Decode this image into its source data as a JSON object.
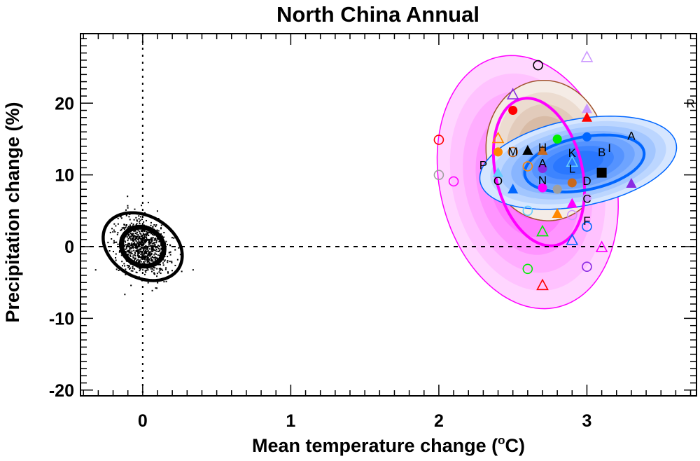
{
  "chart_data": {
    "type": "scatter",
    "title": "North China Annual",
    "xlabel": "Mean temperature change (",
    "xlabel_sup": "o",
    "xlabel_end": "C)",
    "ylabel": "Precipitation change (%)",
    "xlim": [
      -0.42,
      3.74
    ],
    "ylim": [
      -20.8,
      29.7
    ],
    "xticks": [
      0,
      1,
      2,
      3
    ],
    "xtick_labels": [
      "0",
      "1",
      "2",
      "3"
    ],
    "yticks": [
      -20,
      -10,
      0,
      10,
      20
    ],
    "ytick_labels": [
      "-20",
      "-10",
      "0",
      "10",
      "20"
    ],
    "grid": false,
    "reference_lines": {
      "x": 0,
      "y": 0,
      "style": "dotted"
    },
    "control_scatter": {
      "n": 850,
      "center": [
        0,
        0
      ],
      "x_sd": 0.1,
      "y_sd": 2.0,
      "color": "#000000"
    },
    "ellipses": [
      {
        "name": "magenta-pdf",
        "center": [
          2.6,
          9.0
        ],
        "axis1": [
          0.208,
          -17.4
        ],
        "axis2": [
          -0.575,
          -2.93
        ],
        "edge": "#ff00ff",
        "fills": [
          "#ffd6ff",
          "#ffc2ff",
          "#ffadff",
          "#ff94ff",
          "#ff7cff",
          "#ff66ff"
        ]
      },
      {
        "name": "brown-pdf",
        "center": [
          2.723,
          13.4
        ],
        "axis1": [
          -0.047,
          9.76
        ],
        "axis2": [
          0.402,
          0.78
        ],
        "edge": "#a0522d",
        "fills": [
          "#f5ece6",
          "#ecdcd0",
          "#e2cbbb",
          "#d8bba6",
          "#cfac95"
        ]
      },
      {
        "name": "blue-pdf",
        "center": [
          2.941,
          11.7
        ],
        "axis1": [
          0.662,
          2.63
        ],
        "axis2": [
          0.055,
          -5.94
        ],
        "edge": "#0066ff",
        "fills": [
          "#d6e6ff",
          "#bcd6ff",
          "#a2c6ff",
          "#88b5ff",
          "#6ea4ff",
          "#5593ff",
          "#3d84ff",
          "#2a77ff"
        ]
      }
    ],
    "contours": [
      {
        "name": "control-outer-contour",
        "center": [
          0,
          0
        ],
        "axis1": [
          0.246,
          -2.93
        ],
        "axis2": [
          -0.104,
          -3.71
        ],
        "color": "#000000"
      },
      {
        "name": "control-inner-contour",
        "center": [
          0,
          0
        ],
        "axis1": [
          0.132,
          -1.37
        ],
        "axis2": [
          -0.057,
          -2.34
        ],
        "color": "#000000"
      },
      {
        "name": "magenta-inner-contour",
        "center": [
          2.676,
          10.4
        ],
        "axis1": [
          0.118,
          -10.2
        ],
        "axis2": [
          -0.284,
          -1.37
        ],
        "color": "#ff00ff"
      },
      {
        "name": "blue-inner-contour",
        "center": [
          2.983,
          11.6
        ],
        "axis1": [
          0.402,
          1.66
        ],
        "axis2": [
          0.035,
          -3.61
        ],
        "color": "#0066ff"
      }
    ],
    "markers": [
      {
        "shape": "circle-open",
        "color": "#000000",
        "x": 2.67,
        "y": 25.3
      },
      {
        "shape": "circle-open",
        "color": "#ff0000",
        "x": 2.0,
        "y": 14.9
      },
      {
        "shape": "circle-open",
        "color": "#a0a0a0",
        "x": 2.0,
        "y": 10.0
      },
      {
        "shape": "circle-open",
        "color": "#ff00ff",
        "x": 2.1,
        "y": 9.1
      },
      {
        "shape": "circle-open",
        "color": "#ff8800",
        "x": 2.6,
        "y": 11.2
      },
      {
        "shape": "circle-open",
        "color": "#66ccff",
        "x": 2.6,
        "y": 5.0
      },
      {
        "shape": "circle-open",
        "color": "#cc99ff",
        "x": 2.9,
        "y": 4.4
      },
      {
        "shape": "circle-open",
        "color": "#0066ff",
        "x": 3.0,
        "y": 2.8
      },
      {
        "shape": "circle-open",
        "color": "#00ee00",
        "x": 2.6,
        "y": -3.1
      },
      {
        "shape": "circle-open",
        "color": "#8a2be2",
        "x": 3.0,
        "y": -2.8
      },
      {
        "shape": "circle-open",
        "color": "#c8691e",
        "x": 2.5,
        "y": 13.2
      },
      {
        "shape": "triangle-open",
        "color": "#cc99ff",
        "x": 3.0,
        "y": 26.4
      },
      {
        "shape": "triangle-open",
        "color": "#8a2be2",
        "x": 2.5,
        "y": 21.2
      },
      {
        "shape": "triangle-open",
        "color": "#ff8800",
        "x": 2.4,
        "y": 15.1
      },
      {
        "shape": "triangle-open",
        "color": "#00ee00",
        "x": 2.7,
        "y": 2.1
      },
      {
        "shape": "triangle-open",
        "color": "#0066ff",
        "x": 2.9,
        "y": 0.9
      },
      {
        "shape": "triangle-open",
        "color": "#ff00ff",
        "x": 3.1,
        "y": -0.1
      },
      {
        "shape": "triangle-open",
        "color": "#ff0000",
        "x": 2.7,
        "y": -5.4
      },
      {
        "shape": "triangle-open",
        "color": "#66ccff",
        "x": 2.9,
        "y": 11.8
      },
      {
        "shape": "circle",
        "color": "#ff0000",
        "x": 2.5,
        "y": 19.0
      },
      {
        "shape": "circle",
        "color": "#00ee00",
        "x": 2.8,
        "y": 15.0
      },
      {
        "shape": "circle",
        "color": "#0066ff",
        "x": 3.0,
        "y": 15.3
      },
      {
        "shape": "circle",
        "color": "#ff8800",
        "x": 2.4,
        "y": 13.2
      },
      {
        "shape": "circle",
        "color": "#8a2be2",
        "x": 2.7,
        "y": 10.9
      },
      {
        "shape": "circle",
        "color": "#ff00ff",
        "x": 2.7,
        "y": 8.2
      },
      {
        "shape": "circle",
        "color": "#a0a0a0",
        "x": 2.8,
        "y": 8.0
      },
      {
        "shape": "circle",
        "color": "#c8691e",
        "x": 2.9,
        "y": 8.9
      },
      {
        "shape": "circle",
        "color": "#cc99ff",
        "x": 3.0,
        "y": 6.8
      },
      {
        "shape": "triangle",
        "color": "#66ccff",
        "x": 2.4,
        "y": 10.3
      },
      {
        "shape": "triangle",
        "color": "#cc99ff",
        "x": 3.0,
        "y": 19.2
      },
      {
        "shape": "triangle",
        "color": "#ff0000",
        "x": 3.0,
        "y": 18.0
      },
      {
        "shape": "triangle",
        "color": "#000000",
        "x": 2.6,
        "y": 13.4
      },
      {
        "shape": "triangle",
        "color": "#c8691e",
        "x": 2.7,
        "y": 13.4
      },
      {
        "shape": "triangle",
        "color": "#0066ff",
        "x": 2.5,
        "y": 8.0
      },
      {
        "shape": "triangle",
        "color": "#8a2be2",
        "x": 3.3,
        "y": 8.8
      },
      {
        "shape": "triangle",
        "color": "#ff00ff",
        "x": 2.9,
        "y": 6.0
      },
      {
        "shape": "triangle",
        "color": "#ff8800",
        "x": 2.8,
        "y": 4.6
      },
      {
        "shape": "square",
        "color": "#000000",
        "x": 3.1,
        "y": 10.3
      }
    ],
    "letter_labels": [
      {
        "text": "A",
        "x": 3.3,
        "y": 15.5
      },
      {
        "text": "M",
        "x": 2.5,
        "y": 13.3
      },
      {
        "text": "H",
        "x": 2.7,
        "y": 13.9
      },
      {
        "text": "K",
        "x": 2.9,
        "y": 13.1
      },
      {
        "text": "B",
        "x": 3.1,
        "y": 13.2
      },
      {
        "text": "I",
        "x": 3.1,
        "y": 13.8
      },
      {
        "text": "A",
        "x": 2.7,
        "y": 11.7
      },
      {
        "text": "L",
        "x": 2.9,
        "y": 10.9
      },
      {
        "text": "N",
        "x": 2.7,
        "y": 9.3
      },
      {
        "text": "D",
        "x": 3.0,
        "y": 9.2
      },
      {
        "text": "C",
        "x": 3.0,
        "y": 6.7
      },
      {
        "text": "F",
        "x": 3.0,
        "y": 3.6
      },
      {
        "text": "P",
        "x": 2.3,
        "y": 11.4
      },
      {
        "text": "O",
        "x": 2.4,
        "y": 9.2
      },
      {
        "text": "R",
        "x": 3.7,
        "y": 20.0
      }
    ]
  }
}
